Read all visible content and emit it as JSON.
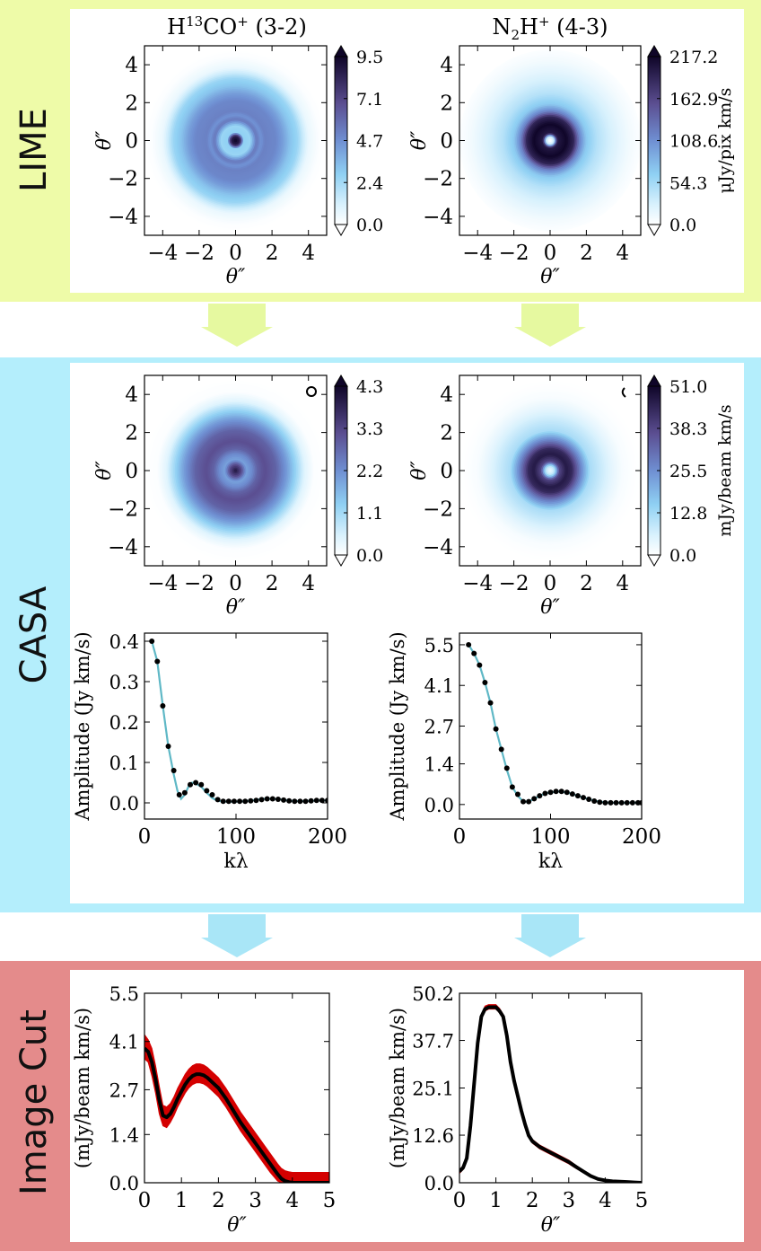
{
  "sections": {
    "lime": {
      "label": "LIME",
      "color": "#eefba8"
    },
    "casa": {
      "label": "CASA",
      "color": "#b4eefc"
    },
    "cut": {
      "label": "Image Cut",
      "color": "#e48b8b"
    }
  },
  "columns": {
    "left": {
      "title": "H$^{13}$CO$^+$ (3-2)"
    },
    "right": {
      "title": "N$_2$H$^+$ (4-3)"
    }
  },
  "chart_data": [
    {
      "id": "lime-left",
      "type": "heatmap",
      "xlabel": "θ″",
      "ylabel": "θ″",
      "xlim": [
        -5,
        5
      ],
      "ylim": [
        -5,
        5
      ],
      "xticks": [
        "−4",
        "−2",
        "0",
        "2",
        "4"
      ],
      "yticks": [
        "4",
        "2",
        "0",
        "−2",
        "−4"
      ],
      "colorbar": {
        "ticks": [
          "9.5",
          "7.1",
          "4.7",
          "2.4",
          "0.0"
        ],
        "label": ""
      },
      "radial_profile": [
        [
          0,
          9.5
        ],
        [
          0.25,
          8.5
        ],
        [
          0.45,
          2.8
        ],
        [
          0.8,
          2.6
        ],
        [
          1.15,
          5.5
        ],
        [
          1.4,
          4.6
        ],
        [
          1.6,
          5.2
        ],
        [
          2.2,
          5.0
        ],
        [
          2.6,
          4.3
        ],
        [
          3.0,
          3.2
        ],
        [
          3.4,
          2.6
        ],
        [
          3.7,
          1.5
        ],
        [
          4.0,
          0.6
        ],
        [
          4.6,
          0.1
        ],
        [
          5.0,
          0
        ]
      ],
      "vmax": 9.5
    },
    {
      "id": "lime-right",
      "type": "heatmap",
      "xlabel": "θ″",
      "ylabel": "θ″",
      "xlim": [
        -5,
        5
      ],
      "ylim": [
        -5,
        5
      ],
      "xticks": [
        "−4",
        "−2",
        "0",
        "2",
        "4"
      ],
      "yticks": [
        "4",
        "2",
        "0",
        "−2",
        "−4"
      ],
      "colorbar": {
        "ticks": [
          "217.2",
          "162.9",
          "108.6",
          "54.3",
          "0.0"
        ],
        "label": "μJy/pix km/s"
      },
      "radial_profile": [
        [
          0,
          0
        ],
        [
          0.2,
          30
        ],
        [
          0.4,
          200
        ],
        [
          0.9,
          217
        ],
        [
          1.3,
          190
        ],
        [
          1.6,
          120
        ],
        [
          2.0,
          70
        ],
        [
          2.6,
          45
        ],
        [
          3.2,
          30
        ],
        [
          3.8,
          18
        ],
        [
          4.4,
          8
        ],
        [
          5.0,
          2
        ]
      ],
      "vmax": 217.2
    },
    {
      "id": "casa-left",
      "type": "heatmap",
      "xlabel": "θ″",
      "ylabel": "θ″",
      "xlim": [
        -5,
        5
      ],
      "ylim": [
        -5,
        5
      ],
      "xticks": [
        "−4",
        "−2",
        "0",
        "2",
        "4"
      ],
      "yticks": [
        "4",
        "2",
        "0",
        "−2",
        "−4"
      ],
      "colorbar": {
        "ticks": [
          "4.3",
          "3.3",
          "2.2",
          "1.1",
          "0.0"
        ],
        "label": ""
      },
      "radial_profile": [
        [
          0,
          4.0
        ],
        [
          0.3,
          3.2
        ],
        [
          0.6,
          1.9
        ],
        [
          0.9,
          2.2
        ],
        [
          1.2,
          2.8
        ],
        [
          1.6,
          3.1
        ],
        [
          2.2,
          2.8
        ],
        [
          2.8,
          2.0
        ],
        [
          3.3,
          1.2
        ],
        [
          3.8,
          0.4
        ],
        [
          4.3,
          0.05
        ],
        [
          5.0,
          0
        ]
      ],
      "vmax": 4.3
    },
    {
      "id": "casa-right",
      "type": "heatmap",
      "xlabel": "θ″",
      "ylabel": "θ″",
      "xlim": [
        -5,
        5
      ],
      "ylim": [
        -5,
        5
      ],
      "xticks": [
        "−4",
        "−2",
        "0",
        "2",
        "4"
      ],
      "yticks": [
        "4",
        "2",
        "0",
        "−2",
        "−4"
      ],
      "colorbar": {
        "ticks": [
          "51.0",
          "38.3",
          "25.5",
          "12.8",
          "0.0"
        ],
        "label": "mJy/beam km/s"
      },
      "radial_profile": [
        [
          0,
          3
        ],
        [
          0.25,
          10
        ],
        [
          0.5,
          38
        ],
        [
          0.9,
          47
        ],
        [
          1.2,
          44
        ],
        [
          1.6,
          30
        ],
        [
          2.2,
          12
        ],
        [
          2.8,
          8
        ],
        [
          3.4,
          4
        ],
        [
          4.0,
          1.2
        ],
        [
          4.6,
          0.3
        ],
        [
          5.0,
          0
        ]
      ],
      "vmax": 51.0
    },
    {
      "id": "vis-left",
      "type": "scatter",
      "xlabel": "kλ",
      "ylabel": "Amplitude (Jy km/s)",
      "xlim": [
        0,
        200
      ],
      "ylim": [
        -0.04,
        0.42
      ],
      "xticks": [
        0,
        100,
        200
      ],
      "yticks": [
        0.0,
        0.1,
        0.2,
        0.3,
        0.4
      ],
      "ytick_labels": [
        "0.0",
        "0.1",
        "0.2",
        "0.3",
        "0.4"
      ],
      "x": [
        8,
        14,
        20,
        26,
        32,
        38,
        44,
        50,
        56,
        62,
        68,
        74,
        80,
        86,
        92,
        98,
        104,
        110,
        116,
        122,
        128,
        134,
        140,
        146,
        152,
        158,
        164,
        170,
        176,
        182,
        188,
        194,
        200
      ],
      "y": [
        0.4,
        0.35,
        0.24,
        0.14,
        0.08,
        0.02,
        0.025,
        0.045,
        0.05,
        0.045,
        0.03,
        0.02,
        0.008,
        0.004,
        0.004,
        0.004,
        0.004,
        0.004,
        0.005,
        0.006,
        0.008,
        0.01,
        0.01,
        0.009,
        0.007,
        0.005,
        0.004,
        0.004,
        0.004,
        0.005,
        0.006,
        0.006,
        0.006
      ],
      "line_x": [
        8,
        14,
        20,
        26,
        32,
        36,
        40,
        44,
        48,
        52,
        56,
        62,
        68,
        74,
        80,
        90,
        100,
        110,
        120,
        130,
        140,
        150,
        160,
        170,
        180,
        190,
        200
      ],
      "line_y": [
        0.4,
        0.35,
        0.24,
        0.14,
        0.07,
        0.03,
        0.01,
        0.02,
        0.04,
        0.05,
        0.048,
        0.04,
        0.025,
        0.012,
        0.005,
        0.003,
        0.003,
        0.004,
        0.007,
        0.01,
        0.01,
        0.008,
        0.005,
        0.004,
        0.005,
        0.006,
        0.006
      ]
    },
    {
      "id": "vis-right",
      "type": "scatter",
      "xlabel": "kλ",
      "ylabel": "Amplitude (Jy km/s)",
      "xlim": [
        0,
        200
      ],
      "ylim": [
        -0.5,
        5.9
      ],
      "xticks": [
        0,
        100,
        200
      ],
      "yticks": [
        0.0,
        1.4,
        2.7,
        4.1,
        5.5
      ],
      "ytick_labels": [
        "0.0",
        "1.4",
        "2.7",
        "4.1",
        "5.5"
      ],
      "x": [
        10,
        16,
        22,
        28,
        34,
        40,
        46,
        52,
        58,
        64,
        70,
        76,
        82,
        88,
        94,
        100,
        106,
        112,
        118,
        124,
        130,
        136,
        142,
        148,
        154,
        160,
        166,
        172,
        178,
        184,
        190,
        196,
        200
      ],
      "y": [
        5.5,
        5.2,
        4.8,
        4.2,
        3.5,
        2.6,
        1.9,
        1.25,
        0.6,
        0.35,
        0.1,
        0.1,
        0.2,
        0.3,
        0.38,
        0.42,
        0.45,
        0.45,
        0.42,
        0.36,
        0.3,
        0.24,
        0.18,
        0.12,
        0.08,
        0.06,
        0.06,
        0.06,
        0.06,
        0.06,
        0.06,
        0.06,
        0.06
      ],
      "line_x": [
        10,
        16,
        22,
        28,
        34,
        40,
        46,
        52,
        58,
        64,
        70,
        76,
        82,
        88,
        94,
        100,
        110,
        120,
        130,
        140,
        150,
        160,
        170,
        180,
        190,
        200
      ],
      "line_y": [
        5.5,
        5.2,
        4.8,
        4.2,
        3.5,
        2.6,
        1.9,
        1.2,
        0.6,
        0.3,
        0.1,
        0.1,
        0.2,
        0.3,
        0.38,
        0.42,
        0.45,
        0.4,
        0.3,
        0.2,
        0.12,
        0.07,
        0.06,
        0.06,
        0.06,
        0.06
      ]
    },
    {
      "id": "cut-left",
      "type": "line",
      "xlabel": "θ″",
      "ylabel": "(mJy/beam km/s)",
      "xlim": [
        0,
        5
      ],
      "ylim": [
        0,
        5.5
      ],
      "xticks": [
        0,
        1,
        2,
        3,
        4,
        5
      ],
      "yticks": [
        0.0,
        1.4,
        2.7,
        4.1,
        5.5
      ],
      "ytick_labels": [
        "0.0",
        "1.4",
        "2.7",
        "4.1",
        "5.5"
      ],
      "x": [
        0,
        0.1,
        0.2,
        0.3,
        0.4,
        0.5,
        0.6,
        0.7,
        0.8,
        0.9,
        1.0,
        1.1,
        1.2,
        1.3,
        1.4,
        1.5,
        1.6,
        1.7,
        1.8,
        1.9,
        2.0,
        2.2,
        2.4,
        2.6,
        2.8,
        3.0,
        3.2,
        3.4,
        3.6,
        3.7,
        3.8,
        3.9,
        4.0,
        4.2,
        4.4,
        4.6,
        4.8,
        5.0
      ],
      "y": [
        3.9,
        3.8,
        3.5,
        3.0,
        2.4,
        1.95,
        1.9,
        2.0,
        2.2,
        2.45,
        2.65,
        2.85,
        3.0,
        3.1,
        3.15,
        3.15,
        3.12,
        3.05,
        2.95,
        2.85,
        2.75,
        2.45,
        2.1,
        1.75,
        1.45,
        1.15,
        0.85,
        0.55,
        0.25,
        0.12,
        0.05,
        0.02,
        0.0,
        0.0,
        0.0,
        0.0,
        0.0,
        0.0
      ],
      "band_lo": [
        3.6,
        3.5,
        3.1,
        2.6,
        2.0,
        1.65,
        1.6,
        1.75,
        1.95,
        2.2,
        2.4,
        2.6,
        2.75,
        2.85,
        2.9,
        2.9,
        2.87,
        2.8,
        2.7,
        2.6,
        2.5,
        2.2,
        1.85,
        1.5,
        1.2,
        0.9,
        0.6,
        0.3,
        0.05,
        0.0,
        0.0,
        0.0,
        0.0,
        0.0,
        0.0,
        0.0,
        0.0,
        0.0
      ],
      "band_hi": [
        4.3,
        4.15,
        3.9,
        3.4,
        2.8,
        2.25,
        2.2,
        2.3,
        2.5,
        2.75,
        2.95,
        3.15,
        3.3,
        3.4,
        3.45,
        3.45,
        3.42,
        3.35,
        3.25,
        3.15,
        3.05,
        2.75,
        2.4,
        2.05,
        1.75,
        1.45,
        1.15,
        0.85,
        0.55,
        0.42,
        0.35,
        0.32,
        0.3,
        0.3,
        0.3,
        0.3,
        0.3,
        0.3
      ],
      "colors": {
        "line": "#000000",
        "band": "#d40000"
      }
    },
    {
      "id": "cut-right",
      "type": "line",
      "xlabel": "θ″",
      "ylabel": "(mJy/beam km/s)",
      "xlim": [
        0,
        5
      ],
      "ylim": [
        0,
        50.2
      ],
      "xticks": [
        0,
        1,
        2,
        3,
        4,
        5
      ],
      "yticks": [
        0.0,
        12.6,
        25.1,
        37.7,
        50.2
      ],
      "ytick_labels": [
        "0.0",
        "12.6",
        "25.1",
        "37.7",
        "50.2"
      ],
      "x": [
        0,
        0.1,
        0.2,
        0.3,
        0.4,
        0.5,
        0.6,
        0.7,
        0.8,
        0.9,
        1.0,
        1.1,
        1.2,
        1.3,
        1.4,
        1.5,
        1.6,
        1.7,
        1.8,
        1.9,
        2.0,
        2.2,
        2.4,
        2.6,
        2.8,
        3.0,
        3.2,
        3.4,
        3.6,
        3.8,
        4.0,
        4.2,
        4.4,
        4.6,
        4.8,
        5.0
      ],
      "y": [
        3,
        4,
        6.5,
        15,
        26,
        37,
        44,
        46,
        46.5,
        46.5,
        46.5,
        45.5,
        44,
        39,
        32,
        27,
        23,
        19,
        15.5,
        12.5,
        11,
        9.5,
        8.5,
        7.5,
        6.5,
        5.5,
        4.2,
        3.0,
        1.8,
        1.0,
        0.6,
        0.4,
        0.3,
        0.2,
        0.1,
        0.0
      ],
      "band_lo": [
        2.5,
        3.5,
        6,
        14.5,
        25.5,
        36.5,
        43.5,
        45.5,
        46,
        46,
        46,
        45,
        43.5,
        38.5,
        31.5,
        26.5,
        22.5,
        18.5,
        15,
        12,
        10.5,
        9,
        8,
        7,
        6,
        5,
        3.8,
        2.7,
        1.5,
        0.8,
        0.4,
        0.3,
        0.2,
        0.1,
        0.05,
        0.0
      ],
      "band_hi": [
        3.5,
        4.5,
        7,
        15.5,
        26.5,
        37.5,
        44.5,
        46.8,
        47.2,
        47.2,
        47.2,
        46.2,
        44.6,
        39.6,
        32.6,
        27.6,
        23.6,
        19.6,
        16,
        13,
        11.5,
        10,
        9,
        8,
        7,
        6,
        4.6,
        3.3,
        2.1,
        1.2,
        0.8,
        0.5,
        0.4,
        0.3,
        0.15,
        0.05
      ],
      "colors": {
        "line": "#000000",
        "band": "#d40000"
      }
    }
  ],
  "colors": {
    "arrow_lime": "#e6f9a0",
    "arrow_casa": "#a9e6f7",
    "scatter_line": "#5fb8c6"
  }
}
